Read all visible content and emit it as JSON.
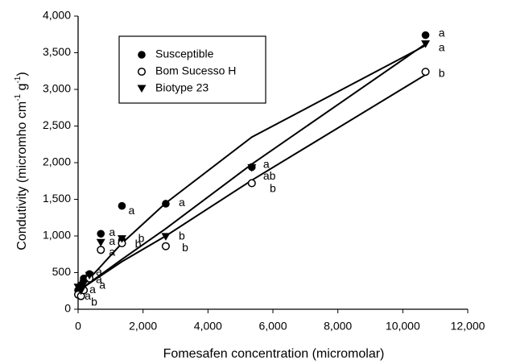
{
  "chart_data": {
    "type": "scatter",
    "xlabel": "Fomesafen concentration (micromolar)",
    "ylabel_parts": [
      "Condutivity (micromho cm",
      "-1",
      " g",
      "-1",
      ")"
    ],
    "xlim": [
      0,
      12000
    ],
    "ylim": [
      0,
      4000
    ],
    "xticks": [
      0,
      {
        "value": 2000,
        "label": "2,000"
      },
      {
        "value": 4000,
        "label": "4,000"
      },
      {
        "value": 6000,
        "label": "6,000"
      },
      {
        "value": 8000,
        "label": "8,000"
      },
      {
        "value": 10000,
        "label": "10,000"
      },
      {
        "value": 12000,
        "label": "12,000"
      }
    ],
    "yticks": [
      0,
      500,
      {
        "value": 1000,
        "label": "1,000"
      },
      {
        "value": 1500,
        "label": "1,500"
      },
      {
        "value": 2000,
        "label": "2,000"
      },
      {
        "value": 2500,
        "label": "2,500"
      },
      {
        "value": 3000,
        "label": "3,000"
      },
      {
        "value": 3500,
        "label": "3,500"
      },
      {
        "value": 4000,
        "label": "4,000"
      }
    ],
    "series": [
      {
        "name": "Susceptible",
        "marker": "circle-filled",
        "color": "#000000",
        "x": [
          0,
          90,
          175,
          350,
          700,
          1350,
          1350,
          2700,
          5350,
          10700
        ],
        "y": [
          260,
          330,
          420,
          480,
          1030,
          1410,
          940,
          1440,
          1940,
          3740
        ]
      },
      {
        "name": "Bom Sucesso H",
        "marker": "circle-open",
        "color": "#000000",
        "x": [
          0,
          90,
          175,
          350,
          700,
          1350,
          2700,
          5350,
          10700
        ],
        "y": [
          200,
          180,
          260,
          420,
          810,
          900,
          860,
          1720,
          3240
        ]
      },
      {
        "name": "Biotype 23",
        "marker": "triangle-down",
        "color": "#000000",
        "x": [
          0,
          90,
          175,
          350,
          700,
          1350,
          2700,
          5350,
          10700
        ],
        "y": [
          300,
          250,
          350,
          460,
          910,
          960,
          990,
          1930,
          3620
        ]
      }
    ],
    "curves": [
      {
        "x": [
          0,
          1350,
          2700,
          5350,
          10700
        ],
        "y": [
          250,
          900,
          1450,
          2350,
          3600
        ]
      },
      {
        "x": [
          0,
          1350,
          2700,
          5350,
          10700
        ],
        "y": [
          250,
          680,
          1100,
          1980,
          3620
        ]
      },
      {
        "x": [
          0,
          1350,
          2700,
          5350,
          10700
        ],
        "y": [
          250,
          650,
          1000,
          1760,
          3200
        ]
      }
    ],
    "annotations": [
      {
        "text": "a",
        "x": 11100,
        "y": 3760
      },
      {
        "text": "a",
        "x": 11100,
        "y": 3560
      },
      {
        "text": "b",
        "x": 11100,
        "y": 3210
      },
      {
        "text": "a",
        "x": 5700,
        "y": 1970
      },
      {
        "text": "ab",
        "x": 5700,
        "y": 1810
      },
      {
        "text": "b",
        "x": 5900,
        "y": 1640
      },
      {
        "text": "a",
        "x": 3100,
        "y": 1450
      },
      {
        "text": "b",
        "x": 3100,
        "y": 990
      },
      {
        "text": "b",
        "x": 3200,
        "y": 830
      },
      {
        "text": "a",
        "x": 1550,
        "y": 1340
      },
      {
        "text": "b",
        "x": 1850,
        "y": 960
      },
      {
        "text": "b",
        "x": 1750,
        "y": 880
      },
      {
        "text": "a",
        "x": 950,
        "y": 1040
      },
      {
        "text": "a",
        "x": 950,
        "y": 920
      },
      {
        "text": "a",
        "x": 950,
        "y": 770
      },
      {
        "text": "a",
        "x": 550,
        "y": 500
      },
      {
        "text": "a",
        "x": 550,
        "y": 400
      },
      {
        "text": "a",
        "x": 650,
        "y": 320
      },
      {
        "text": "a",
        "x": 350,
        "y": 260
      },
      {
        "text": "a",
        "x": 200,
        "y": 170
      },
      {
        "text": "b",
        "x": 400,
        "y": 90
      }
    ]
  }
}
